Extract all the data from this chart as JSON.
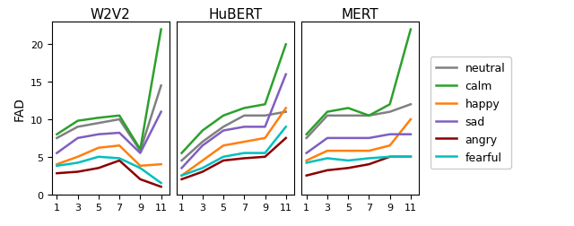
{
  "x_ticks": [
    1,
    3,
    5,
    7,
    9,
    11
  ],
  "x_values": [
    1,
    3,
    5,
    7,
    9,
    11
  ],
  "titles": [
    "W2V2",
    "HuBERT",
    "MERT"
  ],
  "ylabel": "FAD",
  "emotions": [
    "neutral",
    "calm",
    "happy",
    "sad",
    "angry",
    "fearful"
  ],
  "colors": [
    "#808080",
    "#2ca02c",
    "#ff7f0e",
    "#7f5fbf",
    "#8b0000",
    "#00bfbf"
  ],
  "W2V2": {
    "neutral": [
      7.5,
      9.0,
      9.5,
      10.0,
      5.8,
      14.5
    ],
    "calm": [
      8.0,
      9.8,
      10.2,
      10.5,
      6.0,
      22.0
    ],
    "happy": [
      4.0,
      5.0,
      6.2,
      6.5,
      3.8,
      4.0
    ],
    "sad": [
      5.5,
      7.5,
      8.0,
      8.2,
      5.5,
      11.0
    ],
    "angry": [
      2.8,
      3.0,
      3.5,
      4.5,
      2.0,
      1.0
    ],
    "fearful": [
      3.8,
      4.2,
      5.0,
      4.8,
      3.5,
      1.5
    ]
  },
  "HuBERT": {
    "neutral": [
      4.5,
      7.0,
      9.0,
      10.5,
      10.5,
      11.0
    ],
    "calm": [
      5.5,
      8.5,
      10.5,
      11.5,
      12.0,
      20.0
    ],
    "happy": [
      2.5,
      4.5,
      6.5,
      7.0,
      7.5,
      11.5
    ],
    "sad": [
      3.5,
      6.5,
      8.5,
      9.0,
      9.0,
      16.0
    ],
    "angry": [
      2.0,
      3.0,
      4.5,
      4.8,
      5.0,
      7.5
    ],
    "fearful": [
      2.5,
      3.5,
      5.0,
      5.5,
      5.5,
      9.0
    ]
  },
  "MERT": {
    "neutral": [
      7.5,
      10.5,
      10.5,
      10.5,
      11.0,
      12.0
    ],
    "calm": [
      8.0,
      11.0,
      11.5,
      10.5,
      12.0,
      22.0
    ],
    "happy": [
      4.5,
      5.8,
      5.8,
      5.8,
      6.5,
      10.0
    ],
    "sad": [
      5.5,
      7.5,
      7.5,
      7.5,
      8.0,
      8.0
    ],
    "angry": [
      2.5,
      3.2,
      3.5,
      4.0,
      5.0,
      5.0
    ],
    "fearful": [
      4.2,
      4.8,
      4.5,
      4.8,
      5.0,
      5.0
    ]
  },
  "legend_fontsize": 9,
  "tick_fontsize": 8,
  "title_fontsize": 11,
  "ylabel_fontsize": 10,
  "linewidth": 1.8,
  "ylim": [
    0,
    23
  ],
  "yticks": [
    0,
    5,
    10,
    15,
    20
  ]
}
